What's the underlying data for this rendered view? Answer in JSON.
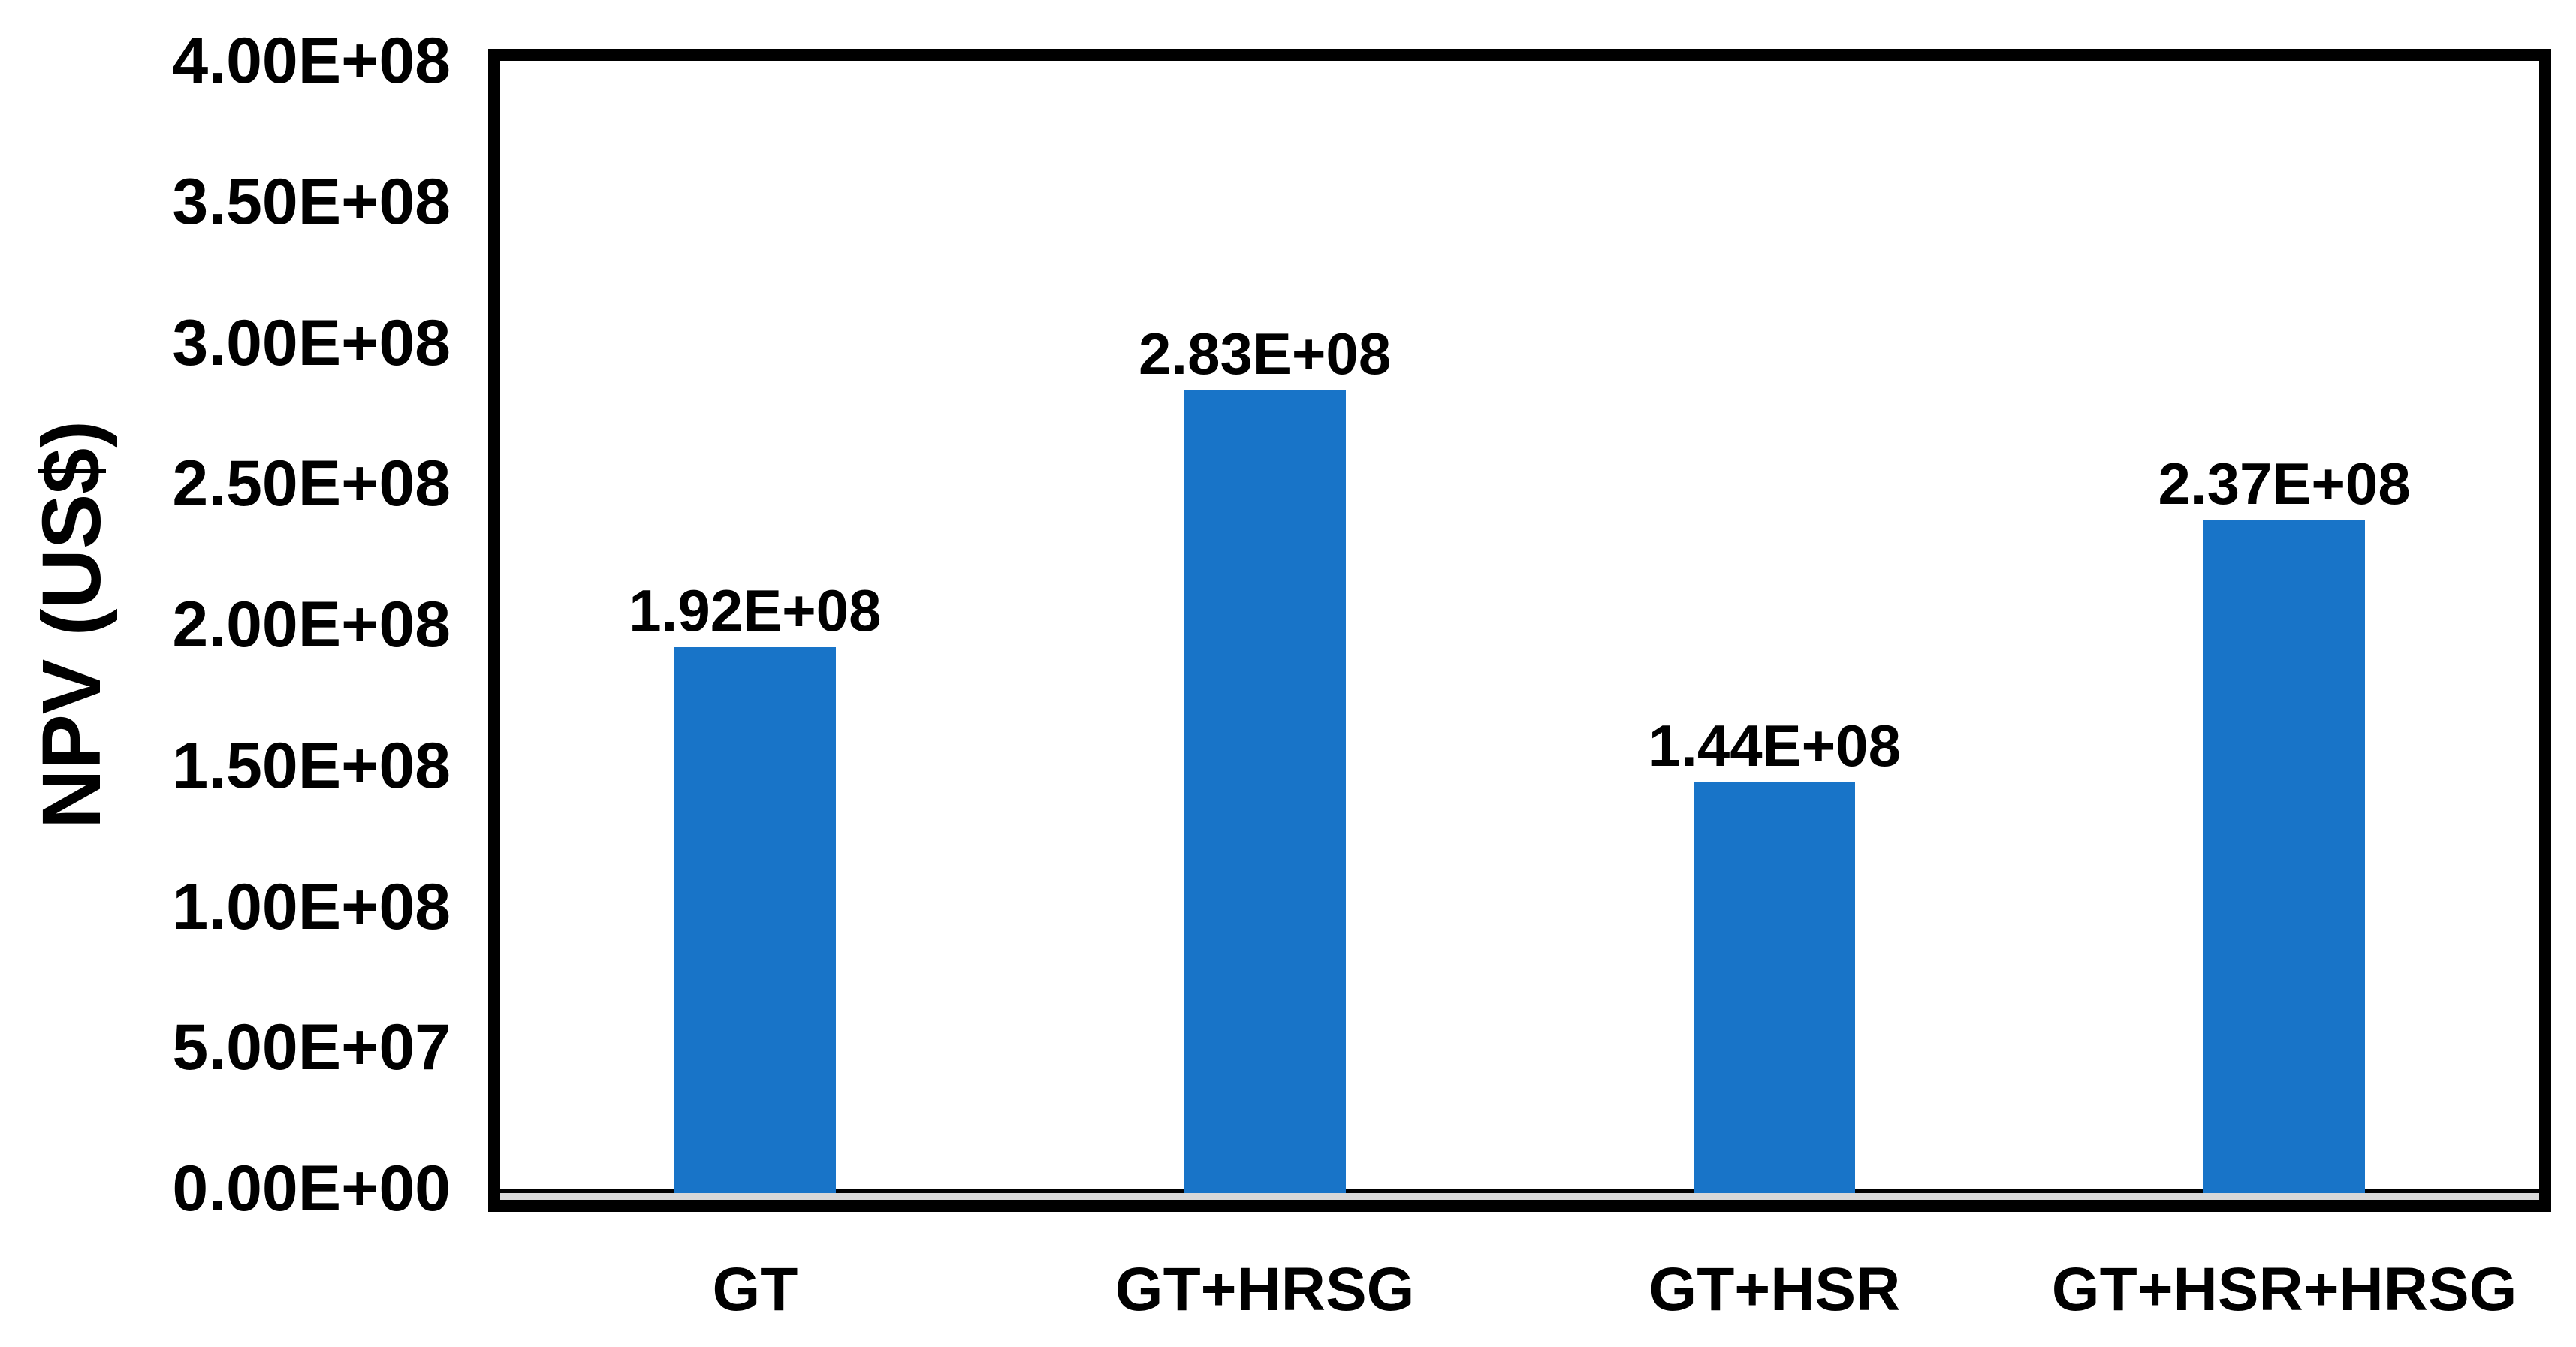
{
  "chart_data": {
    "type": "bar",
    "title": "",
    "xlabel": "",
    "ylabel": "NPV (US$)",
    "categories": [
      "GT",
      "GT+HRSG",
      "GT+HSR",
      "GT+HSR+HRSG"
    ],
    "values": [
      192000000,
      283000000,
      144000000,
      237000000
    ],
    "value_labels": [
      "1.92E+08",
      "2.83E+08",
      "1.44E+08",
      "2.37E+08"
    ],
    "ylim": [
      0,
      400000000
    ],
    "ytick_step": 50000000,
    "ytick_labels": [
      "0.00E+00",
      "5.00E+07",
      "1.00E+08",
      "1.50E+08",
      "2.00E+08",
      "2.50E+08",
      "3.00E+08",
      "3.50E+08",
      "4.00E+08"
    ],
    "grid": false,
    "legend": false,
    "bar_color": "#1874C8",
    "frame_color": "#000000",
    "baseline_strip_color": "#D8D8D8",
    "text_color": "#000000"
  }
}
